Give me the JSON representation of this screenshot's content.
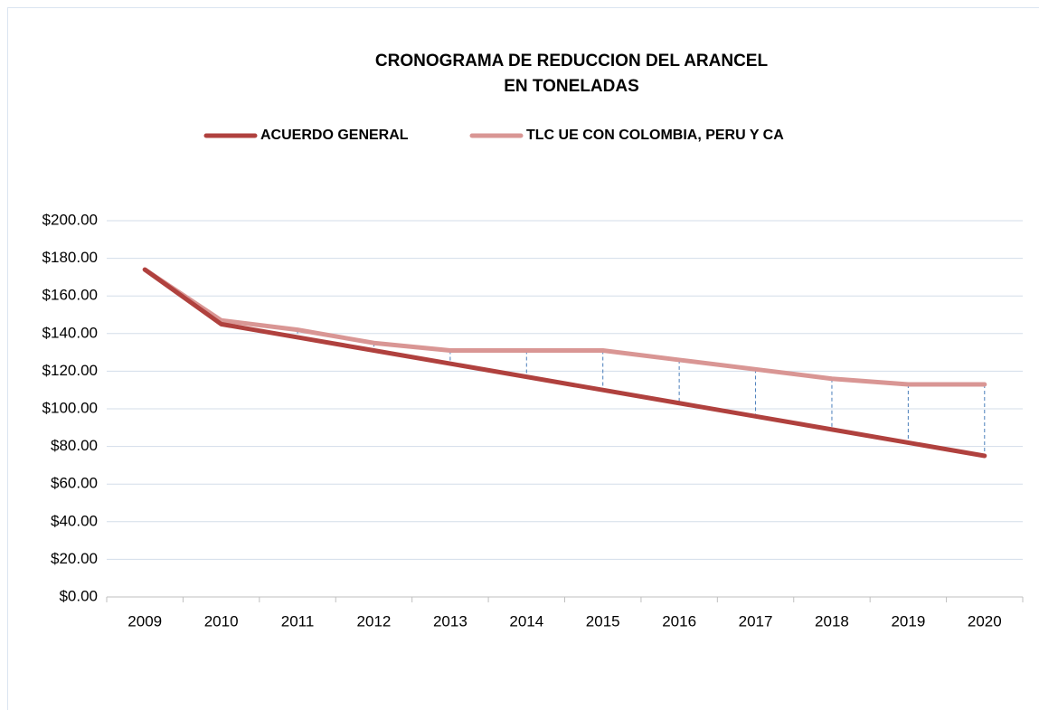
{
  "chart_data": {
    "type": "line",
    "title": [
      "CRONOGRAMA DE REDUCCION DEL ARANCEL",
      "EN TONELADAS"
    ],
    "categories": [
      "2009",
      "2010",
      "2011",
      "2012",
      "2013",
      "2014",
      "2015",
      "2016",
      "2017",
      "2018",
      "2019",
      "2020"
    ],
    "series": [
      {
        "name": "ACUERDO GENERAL",
        "color": "#b0413e",
        "values": [
          174,
          145,
          138,
          131,
          124,
          117,
          110,
          103,
          96,
          89,
          82,
          75
        ]
      },
      {
        "name": "TLC UE CON COLOMBIA, PERU Y CA",
        "color": "#d99694",
        "values": [
          174,
          147,
          142,
          135,
          131,
          131,
          131,
          126,
          121,
          116,
          113,
          113
        ]
      }
    ],
    "ylim": [
      0,
      200
    ],
    "yticks": [
      {
        "value": 0,
        "label": "$0.00"
      },
      {
        "value": 20,
        "label": "$20.00"
      },
      {
        "value": 40,
        "label": "$40.00"
      },
      {
        "value": 60,
        "label": "$60.00"
      },
      {
        "value": 80,
        "label": "$80.00"
      },
      {
        "value": 100,
        "label": "$100.00"
      },
      {
        "value": 120,
        "label": "$120.00"
      },
      {
        "value": 140,
        "label": "$140.00"
      },
      {
        "value": 160,
        "label": "$160.00"
      },
      {
        "value": 180,
        "label": "$180.00"
      },
      {
        "value": 200,
        "label": "$200.00"
      }
    ],
    "grid": true,
    "drop_lines": true,
    "legend": "top"
  }
}
